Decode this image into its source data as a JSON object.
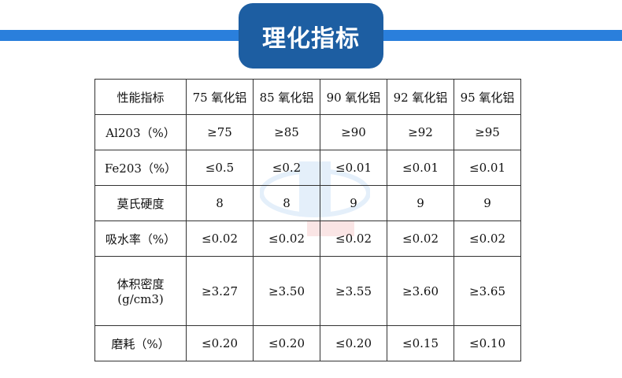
{
  "title": "理化指标",
  "table": {
    "headers": [
      "性能指标",
      "75 氧化铝",
      "85 氧化铝",
      "90 氧化铝",
      "92 氧化铝",
      "95 氧化铝"
    ],
    "rows": [
      [
        "Al203（%）",
        "≥75",
        "≥85",
        "≥90",
        "≥92",
        "≥95"
      ],
      [
        "Fe203（%）",
        "≤0.5",
        "≤0.2",
        "≤0.01",
        "≤0.01",
        "≤0.01"
      ],
      [
        "莫氏硬度",
        "8",
        "8",
        "9",
        "9",
        "9"
      ],
      [
        "吸水率（%）",
        "≤0.02",
        "≤0.02",
        "≤0.02",
        "≤0.02",
        "≤0.02"
      ],
      [
        "体积密度(g/cm3)",
        "≥3.27",
        "≥3.50",
        "≥3.55",
        "≥3.60",
        "≥3.65"
      ],
      [
        "磨耗（%）",
        "≤0.20",
        "≤0.20",
        "≤0.20",
        "≤0.15",
        "≤0.10"
      ]
    ]
  },
  "colors": {
    "bar": "#2a7fdc",
    "title_bg": "#1d5ea2"
  }
}
